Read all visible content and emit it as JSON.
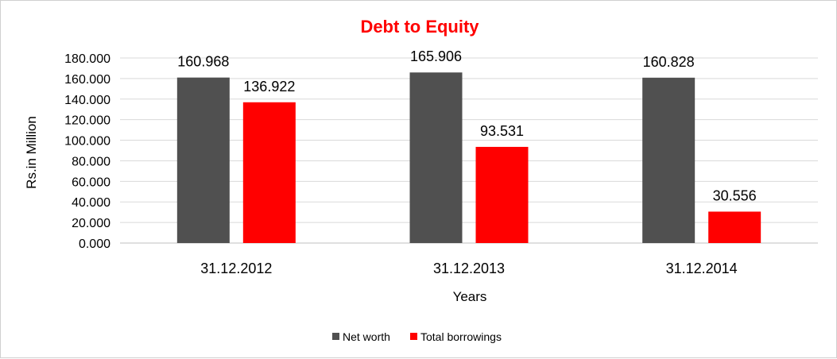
{
  "chart_data": {
    "type": "bar",
    "title": "Debt to Equity",
    "title_color": "#ff0000",
    "xlabel": "Years",
    "ylabel": "Rs.in Million",
    "categories": [
      "31.12.2012",
      "31.12.2013",
      "31.12.2014"
    ],
    "series": [
      {
        "name": "Net worth",
        "values": [
          160.968,
          165.906,
          160.828
        ],
        "color": "#505050"
      },
      {
        "name": "Total borrowings",
        "values": [
          136.922,
          93.531,
          30.556
        ],
        "color": "#ff0000"
      }
    ],
    "data_labels": [
      [
        "160.968",
        "165.906",
        "160.828"
      ],
      [
        "136.922",
        "93.531",
        "30.556"
      ]
    ],
    "ylim": [
      0,
      180
    ],
    "yticks": [
      0,
      20,
      40,
      60,
      80,
      100,
      120,
      140,
      160,
      180
    ],
    "ytick_labels": [
      "0.000",
      "20.000",
      "40.000",
      "60.000",
      "80.000",
      "100.000",
      "120.000",
      "140.000",
      "160.000",
      "180.000"
    ],
    "grid": true,
    "legend_position": "bottom"
  }
}
